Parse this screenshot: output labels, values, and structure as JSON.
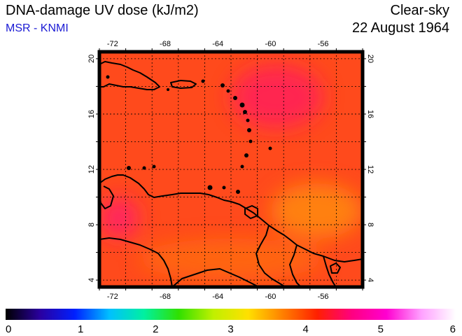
{
  "header": {
    "title": "DNA-damage UV dose (kJ/m2)",
    "source": "MSR - KNMI",
    "mode": "Clear-sky",
    "date": "22 August 1964"
  },
  "map": {
    "lon_range": [
      -73,
      -53
    ],
    "lat_range": [
      3.5,
      20.5
    ],
    "lon_ticks": [
      -72,
      -68,
      -64,
      -60,
      -56
    ],
    "lat_ticks": [
      4,
      8,
      12,
      16,
      20
    ],
    "grid": "dotted",
    "background_color": "#ff4a1c",
    "regions": [
      {
        "name": "north-high-dose",
        "lon": [
          -63,
          -56
        ],
        "lat": [
          15,
          19.5
        ],
        "color": "#ff1f5a"
      },
      {
        "name": "west-high-dose",
        "lon": [
          -73,
          -70
        ],
        "lat": [
          7,
          10
        ],
        "color": "#ff1e6a"
      },
      {
        "name": "central-low-dose",
        "lon": [
          -60,
          -53
        ],
        "lat": [
          7,
          11
        ],
        "color": "#ff8a10"
      },
      {
        "name": "south-low-dose",
        "lon": [
          -70,
          -56
        ],
        "lat": [
          4,
          7
        ],
        "color": "#ff6a10"
      }
    ]
  },
  "colorbar": {
    "min": 0,
    "max": 6,
    "ticks": [
      "0",
      "1",
      "2",
      "3",
      "4",
      "5",
      "6"
    ],
    "stops": [
      "#000000",
      "#2a00a0",
      "#0020ff",
      "#00c0ff",
      "#00f0a0",
      "#30e000",
      "#c0f000",
      "#ffe000",
      "#ff8000",
      "#ff2000",
      "#ff0080",
      "#ff00d0",
      "#ffa0ff",
      "#ffffff"
    ]
  }
}
